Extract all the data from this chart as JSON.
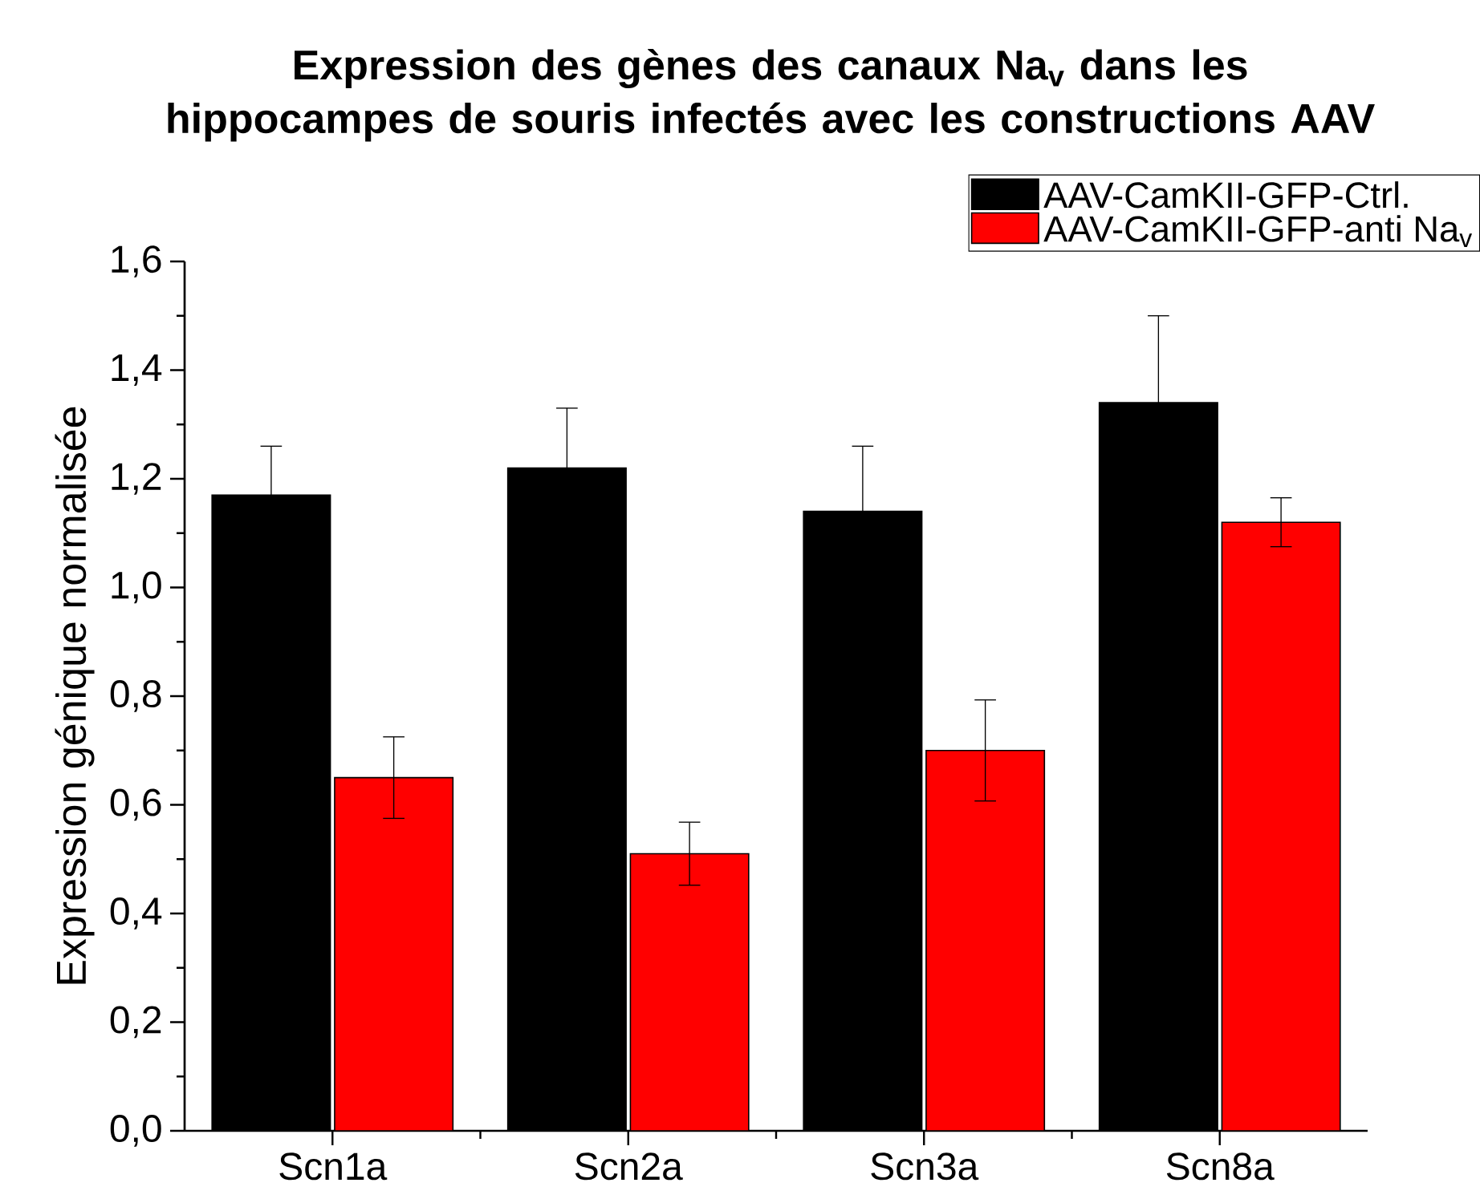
{
  "chart_data": {
    "type": "bar",
    "title": "Expression des gènes des canaux Na$_{v}$ dans les hippocampes de souris infectés avec les constructions AAV",
    "ylabel": "Expression génique normalisée",
    "categories": [
      "Scn1a",
      "Scn2a",
      "Scn3a",
      "Scn8a"
    ],
    "series": [
      {
        "name": "AAV-CamKII-GFP-Ctrl.",
        "color": "#000000",
        "values": [
          1.17,
          1.22,
          1.14,
          1.34
        ],
        "errors": [
          0.09,
          0.11,
          0.12,
          0.16
        ]
      },
      {
        "name": "AAV-CamKII-GFP-anti Na$_{v}$",
        "color": "#ff0000",
        "values": [
          0.65,
          0.51,
          0.7,
          1.12
        ],
        "errors": [
          0.075,
          0.058,
          0.093,
          0.045
        ]
      }
    ],
    "ylim": [
      0,
      1.6
    ],
    "yticks": [
      {
        "value": 0,
        "label": "0,0"
      },
      {
        "value": 0.2,
        "label": "0,2"
      },
      {
        "value": 0.4,
        "label": "0,4"
      },
      {
        "value": 0.6,
        "label": "0,6"
      },
      {
        "value": 0.8,
        "label": "0,8"
      },
      {
        "value": 1.0,
        "label": "1,0"
      },
      {
        "value": 1.2,
        "label": "1,2"
      },
      {
        "value": 1.4,
        "label": "1,4"
      },
      {
        "value": 1.6,
        "label": "1,6"
      }
    ],
    "grid": false,
    "legend": "top right"
  }
}
